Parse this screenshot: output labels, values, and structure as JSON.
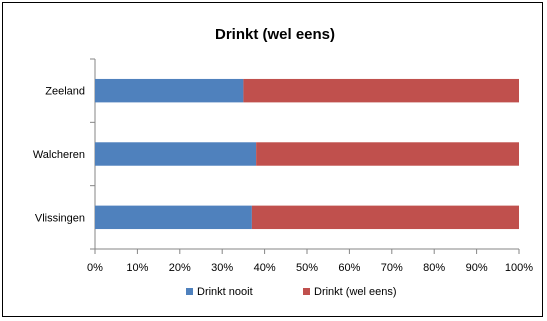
{
  "chart_data": {
    "type": "bar",
    "orientation": "horizontal",
    "stacked": "percent",
    "title": "Drinkt (wel eens)",
    "categories": [
      "Zeeland",
      "Walcheren",
      "Vlissingen"
    ],
    "series": [
      {
        "name": "Drinkt nooit",
        "values": [
          35,
          38,
          37
        ],
        "color": "#4F81BD"
      },
      {
        "name": "Drinkt (wel eens)",
        "values": [
          65,
          62,
          63
        ],
        "color": "#C0504D"
      }
    ],
    "xlim": [
      0,
      100
    ],
    "x_ticks": [
      "0%",
      "10%",
      "20%",
      "30%",
      "40%",
      "50%",
      "60%",
      "70%",
      "80%",
      "90%",
      "100%"
    ],
    "grid": false,
    "legend": "bottom"
  }
}
